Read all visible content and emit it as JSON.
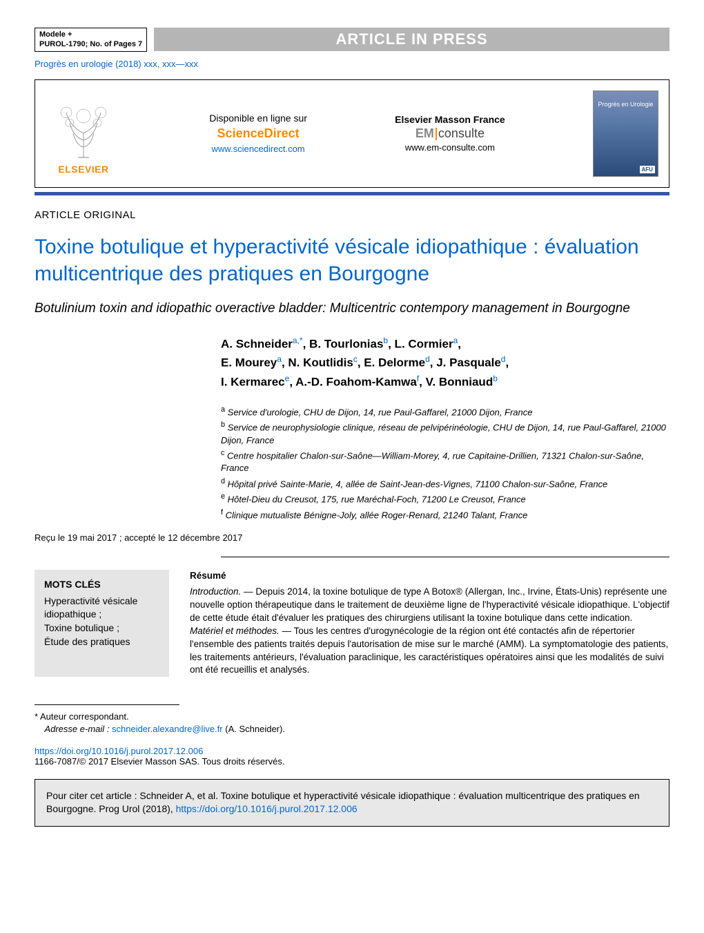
{
  "header": {
    "model_line1": "Modele +",
    "model_line2": "PUROL-1790;   No. of Pages 7",
    "press_label": "ARTICLE IN PRESS",
    "journal_ref": "Progrès en urologie (2018) xxx, xxx—xxx"
  },
  "pubbox": {
    "elsevier": "ELSEVIER",
    "available": "Disponible en ligne sur",
    "sciencedirect": "ScienceDirect",
    "sd_url": "www.sciencedirect.com",
    "em_label": "Elsevier Masson France",
    "em_left": "EM",
    "em_right": "consulte",
    "em_url": "www.em-consulte.com",
    "cover_title": "Progrès en Urologie",
    "afu": "AFU"
  },
  "article": {
    "type": "ARTICLE ORIGINAL",
    "title_fr": "Toxine botulique et hyperactivité vésicale idiopathique : évaluation multicentrique des pratiques en Bourgogne",
    "title_en": "Botulinium toxin and idiopathic overactive bladder: Multicentric contempory management in Bourgogne"
  },
  "authors": {
    "line1_html": "A. Schneider<sup>a,*</sup>, B. Tourlonias<sup>b</sup>, L. Cormier<sup>a</sup>,",
    "line2_html": "E. Mourey<sup>a</sup>, N. Koutlidis<sup>c</sup>, E. Delorme<sup>d</sup>, J. Pasquale<sup>d</sup>,",
    "line3_html": "I. Kermarec<sup>e</sup>, A.-D. Foahom-Kamwa<sup>f</sup>, V. Bonniaud<sup>b</sup>"
  },
  "affiliations": [
    {
      "sup": "a",
      "text": "Service d'urologie, CHU de Dijon, 14, rue Paul-Gaffarel, 21000 Dijon, France"
    },
    {
      "sup": "b",
      "text": "Service de neurophysiologie clinique, réseau de pelvipérinéologie, CHU de Dijon, 14, rue Paul-Gaffarel, 21000 Dijon, France"
    },
    {
      "sup": "c",
      "text": "Centre hospitalier Chalon-sur-Saône—William-Morey, 4, rue Capitaine-Drillien, 71321 Chalon-sur-Saône, France"
    },
    {
      "sup": "d",
      "text": "Hôpital privé Sainte-Marie, 4, allée de Saint-Jean-des-Vignes, 71100 Chalon-sur-Saône, France"
    },
    {
      "sup": "e",
      "text": "Hôtel-Dieu du Creusot, 175, rue Maréchal-Foch, 71200 Le Creusot, France"
    },
    {
      "sup": "f",
      "text": "Clinique mutualiste Bénigne-Joly, allée Roger-Renard, 21240 Talant, France"
    }
  ],
  "dates": "Reçu le 19 mai 2017  ; accepté le 12 décembre 2017",
  "keywords": {
    "heading": "MOTS CLÉS",
    "items": "Hyperactivité vésicale idiopathique ;\nToxine botulique ;\nÉtude des pratiques"
  },
  "abstract": {
    "heading": "Résumé",
    "intro_label": "Introduction. —",
    "intro_text": "Depuis 2014, la toxine botulique de type A Botox® (Allergan, Inc., Irvine, États-Unis) représente une nouvelle option thérapeutique dans le traitement de deuxième ligne de l'hyperactivité vésicale idiopathique. L'objectif de cette étude était d'évaluer les pratiques des chirurgiens utilisant la toxine botulique dans cette indication.",
    "methods_label": "Matériel et méthodes. —",
    "methods_text": "Tous les centres d'urogynécologie de la région ont été contactés afin de répertorier l'ensemble des patients traités depuis l'autorisation de mise sur le marché (AMM). La symptomatologie des patients, les traitements antérieurs, l'évaluation paraclinique, les caractéristiques opératoires ainsi que les modalités de suivi ont été recueillis et analysés."
  },
  "footer": {
    "corresp_label": "* Auteur correspondant.",
    "email_label": "Adresse e-mail :",
    "email": "schneider.alexandre@live.fr",
    "email_name": "(A. Schneider).",
    "doi": "https://doi.org/10.1016/j.purol.2017.12.006",
    "copyright": "1166-7087/© 2017 Elsevier Masson SAS. Tous droits réservés.",
    "cite_text": "Pour citer cet article : Schneider A, et al. Toxine botulique et hyperactivité vésicale idiopathique : évaluation multicentrique des pratiques en Bourgogne. Prog Urol (2018), ",
    "cite_doi": "https://doi.org/10.1016/j.purol.2017.12.006"
  }
}
